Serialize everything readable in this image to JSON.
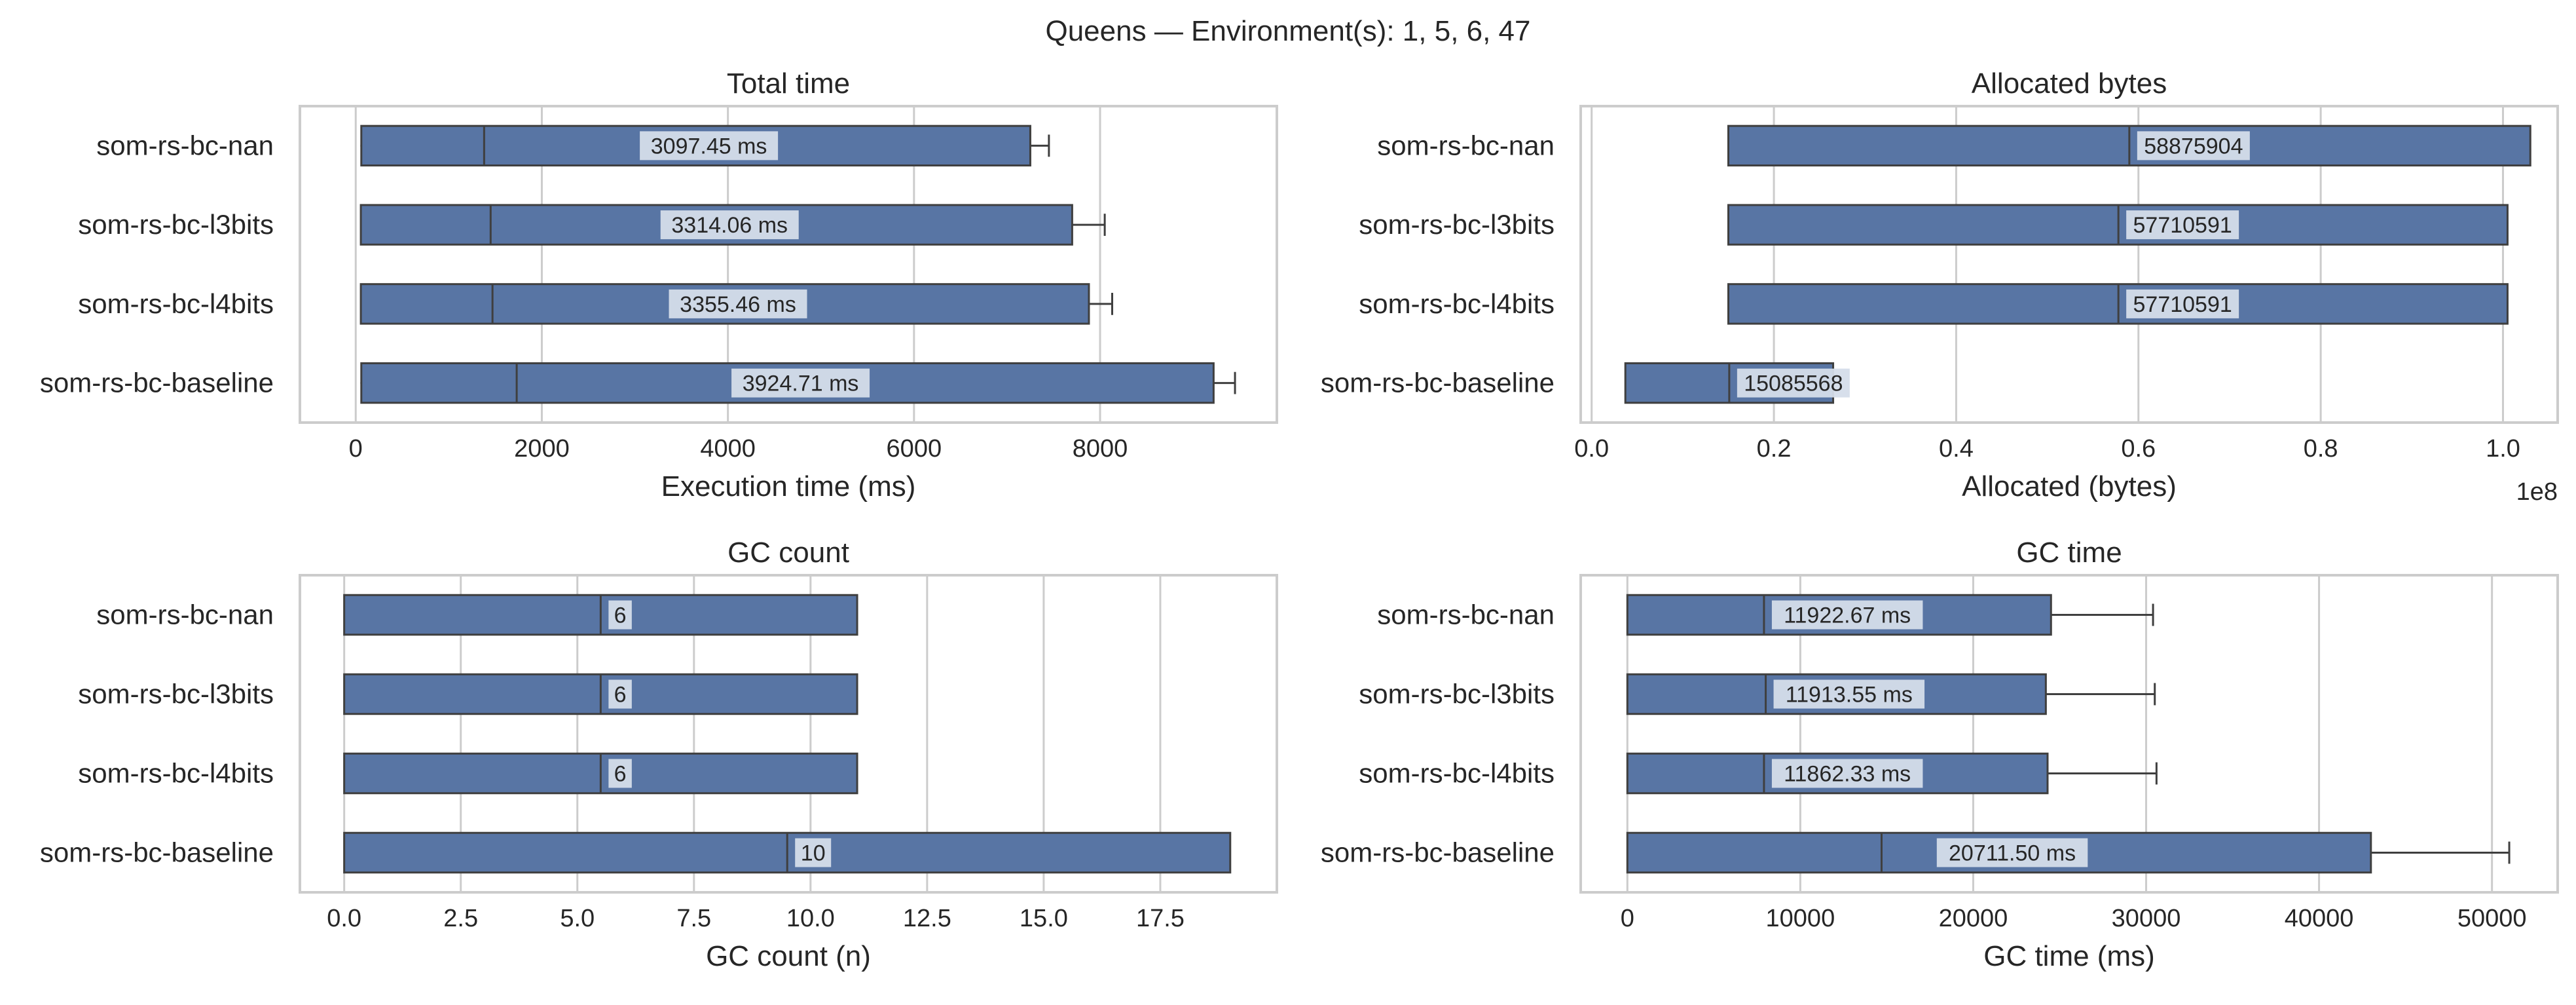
{
  "figure": {
    "title": "Queens — Environment(s): 1, 5, 6, 47",
    "bar_color": "#5875a4",
    "box_color": "#3f3f3f",
    "label_bg": "#d5ddea"
  },
  "chart_data": [
    {
      "type": "box",
      "title": "Total time",
      "xlabel": "Execution time (ms)",
      "ylabel": "",
      "xlim": [
        -600,
        9900
      ],
      "xticks": [
        0,
        2000,
        4000,
        6000,
        8000
      ],
      "xtick_labels": [
        "0",
        "2000",
        "4000",
        "6000",
        "8000"
      ],
      "offset_label": "",
      "grid": "x",
      "categories": [
        "som-rs-bc-nan",
        "som-rs-bc-l3bits",
        "som-rs-bc-l4bits",
        "som-rs-bc-baseline"
      ],
      "series": [
        {
          "q1": 60,
          "median": 1380,
          "q3": 7250,
          "whisker_low": 50,
          "whisker_high": 7450,
          "label": "3097.45 ms"
        },
        {
          "q1": 55,
          "median": 1450,
          "q3": 7700,
          "whisker_low": 50,
          "whisker_high": 8050,
          "label": "3314.06 ms"
        },
        {
          "q1": 55,
          "median": 1470,
          "q3": 7880,
          "whisker_low": 50,
          "whisker_high": 8130,
          "label": "3355.46 ms"
        },
        {
          "q1": 60,
          "median": 1730,
          "q3": 9220,
          "whisker_low": 50,
          "whisker_high": 9450,
          "label": "3924.71 ms"
        }
      ]
    },
    {
      "type": "box",
      "title": "Allocated bytes",
      "xlabel": "Allocated (bytes)",
      "ylabel": "",
      "xlim": [
        -0.012,
        1.06
      ],
      "xticks": [
        0.0,
        0.2,
        0.4,
        0.6,
        0.8,
        1.0
      ],
      "xtick_labels": [
        "0.0",
        "0.2",
        "0.4",
        "0.6",
        "0.8",
        "1.0"
      ],
      "offset_label": "1e8",
      "grid": "x",
      "categories": [
        "som-rs-bc-nan",
        "som-rs-bc-l3bits",
        "som-rs-bc-l4bits",
        "som-rs-bc-baseline"
      ],
      "series": [
        {
          "q1": 0.15,
          "median": 0.59,
          "q3": 1.03,
          "label": "58875904"
        },
        {
          "q1": 0.15,
          "median": 0.578,
          "q3": 1.005,
          "label": "57710591"
        },
        {
          "q1": 0.15,
          "median": 0.578,
          "q3": 1.005,
          "label": "57710591"
        },
        {
          "q1": 0.037,
          "median": 0.151,
          "q3": 0.265,
          "label": "15085568"
        }
      ]
    },
    {
      "type": "box",
      "title": "GC count",
      "xlabel": "GC count (n)",
      "ylabel": "",
      "xlim": [
        -0.95,
        20.0
      ],
      "xticks": [
        0.0,
        2.5,
        5.0,
        7.5,
        10.0,
        12.5,
        15.0,
        17.5
      ],
      "xtick_labels": [
        "0.0",
        "2.5",
        "5.0",
        "7.5",
        "10.0",
        "12.5",
        "15.0",
        "17.5"
      ],
      "offset_label": "",
      "grid": "x",
      "categories": [
        "som-rs-bc-nan",
        "som-rs-bc-l3bits",
        "som-rs-bc-l4bits",
        "som-rs-bc-baseline"
      ],
      "series": [
        {
          "q1": 0,
          "median": 5.5,
          "q3": 11,
          "label": "6"
        },
        {
          "q1": 0,
          "median": 5.5,
          "q3": 11,
          "label": "6"
        },
        {
          "q1": 0,
          "median": 5.5,
          "q3": 11,
          "label": "6"
        },
        {
          "q1": 0,
          "median": 9.5,
          "q3": 19,
          "label": "10"
        }
      ]
    },
    {
      "type": "box",
      "title": "GC time",
      "xlabel": "GC time (ms)",
      "ylabel": "",
      "xlim": [
        -2700,
        53800
      ],
      "xticks": [
        0,
        10000,
        20000,
        30000,
        40000,
        50000
      ],
      "xtick_labels": [
        "0",
        "10000",
        "20000",
        "30000",
        "40000",
        "50000"
      ],
      "offset_label": "",
      "grid": "x",
      "categories": [
        "som-rs-bc-nan",
        "som-rs-bc-l3bits",
        "som-rs-bc-l4bits",
        "som-rs-bc-baseline"
      ],
      "series": [
        {
          "q1": 0,
          "median": 7900,
          "q3": 24500,
          "whisker_low": 0,
          "whisker_high": 30400,
          "label": "11922.67 ms"
        },
        {
          "q1": 0,
          "median": 8000,
          "q3": 24200,
          "whisker_low": 0,
          "whisker_high": 30500,
          "label": "11913.55 ms"
        },
        {
          "q1": 0,
          "median": 7900,
          "q3": 24300,
          "whisker_low": 0,
          "whisker_high": 30600,
          "label": "11862.33 ms"
        },
        {
          "q1": 0,
          "median": 14700,
          "q3": 43000,
          "whisker_low": 0,
          "whisker_high": 51000,
          "label": "20711.50 ms"
        }
      ]
    }
  ]
}
